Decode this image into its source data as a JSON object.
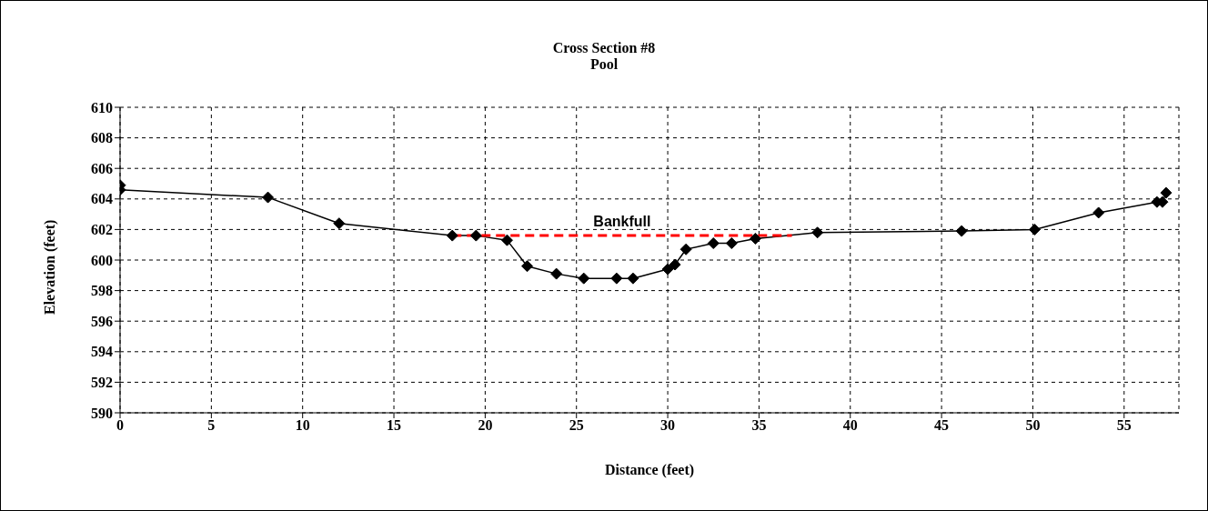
{
  "chart_data": {
    "type": "line",
    "title": "Cross Section #8",
    "subtitle": "Pool",
    "xlabel": "Distance (feet)",
    "ylabel": "Elevation (feet)",
    "xlim": [
      0,
      58
    ],
    "xticks": [
      0,
      5,
      10,
      15,
      20,
      25,
      30,
      35,
      40,
      45,
      50,
      55
    ],
    "ylim": [
      590,
      610
    ],
    "yticks": [
      590,
      592,
      594,
      596,
      598,
      600,
      602,
      604,
      606,
      608,
      610
    ],
    "grid": true,
    "marker": "diamond",
    "series": [
      {
        "color": "#000000",
        "x": [
          0,
          0,
          8.1,
          12.0,
          18.2,
          19.5,
          21.2,
          22.3,
          23.9,
          25.4,
          27.2,
          28.1,
          30.0,
          30.4,
          31.0,
          32.5,
          33.5,
          34.8,
          38.2,
          46.1,
          50.1,
          53.6,
          56.8,
          57.1,
          57.3
        ],
        "values": [
          604.9,
          604.6,
          604.1,
          602.4,
          601.6,
          601.6,
          601.3,
          599.6,
          599.1,
          598.8,
          598.8,
          598.8,
          599.4,
          599.7,
          600.7,
          601.1,
          601.1,
          601.4,
          601.8,
          601.9,
          602.0,
          603.1,
          603.8,
          603.8,
          604.4
        ]
      },
      {
        "name": "Bankfull",
        "color": "#ff0000",
        "line_style": "dashed",
        "marker": "none",
        "x": [
          18.2,
          36.8
        ],
        "values": [
          601.6,
          601.6
        ]
      }
    ]
  }
}
